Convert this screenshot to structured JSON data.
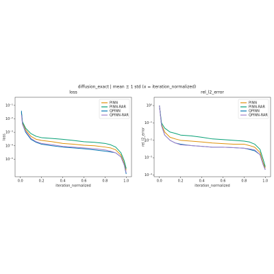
{
  "title": "diffusion_exact | mean ± 1 std (x = iteration_normalized)",
  "chart_data": [
    {
      "type": "line",
      "title": "loss",
      "x_label": "iteration_normalized",
      "y_label": "loss",
      "log_y": true,
      "legend": "upper right",
      "x": [
        0.01,
        0.02,
        0.05,
        0.1,
        0.15,
        0.2,
        0.3,
        0.4,
        0.5,
        0.6,
        0.7,
        0.8,
        0.85,
        0.9,
        0.95,
        0.98,
        1.0
      ],
      "xlim": [
        -0.05,
        1.05
      ],
      "xticks": [
        {
          "value": 0,
          "label": "0.0"
        },
        {
          "value": 0.2,
          "label": "0.2"
        },
        {
          "value": 0.4,
          "label": "0.4"
        },
        {
          "value": 0.6,
          "label": "0.6"
        },
        {
          "value": 0.8,
          "label": "0.8"
        },
        {
          "value": 1,
          "label": "1.0"
        }
      ],
      "ylim": [
        5e-07,
        0.4
      ],
      "yticks": [
        {
          "value": 1e-05,
          "label": "10⁻⁵"
        },
        {
          "value": 0.0001,
          "label": "10⁻⁴"
        },
        {
          "value": 0.001,
          "label": "10⁻³"
        },
        {
          "value": 0.01,
          "label": "10⁻²"
        },
        {
          "value": 0.1,
          "label": "10⁻¹"
        }
      ],
      "series": [
        {
          "name": "PINN",
          "color": "#de8f05",
          "values": [
            0.03,
            0.005,
            0.0015,
            0.0005,
            0.0003,
            0.00025,
            0.0002,
            0.00015,
            0.00013,
            0.00011,
            0.0001,
            8e-05,
            7e-05,
            5e-05,
            2e-05,
            5e-06,
            1.5e-06
          ]
        },
        {
          "name": "PINN-RAR",
          "color": "#029e73",
          "values": [
            0.03,
            0.006,
            0.002,
            0.0008,
            0.0005,
            0.0004,
            0.00035,
            0.0003,
            0.00025,
            0.0002,
            0.00018,
            0.00015,
            0.00012,
            8e-05,
            3e-05,
            8e-06,
            2e-06
          ]
        },
        {
          "name": "QPINN",
          "color": "#0173b2",
          "values": [
            0.04,
            0.004,
            0.001,
            0.0003,
            0.00018,
            0.00013,
            0.0001,
            8e-05,
            7e-05,
            6e-05,
            5e-05,
            4e-05,
            3.5e-05,
            3e-05,
            1.5e-05,
            4e-06,
            8e-07
          ]
        },
        {
          "name": "QPINN-RAR",
          "color": "#a27fc9",
          "values": [
            0.02,
            0.004,
            0.0012,
            0.00035,
            0.0002,
            0.00015,
            0.00012,
            9e-05,
            8e-05,
            7e-05,
            6e-05,
            5e-05,
            4e-05,
            3e-05,
            1.5e-05,
            4e-06,
            1e-06
          ]
        }
      ]
    },
    {
      "type": "line",
      "title": "rel_l2_error",
      "x_label": "iteration_normalized",
      "y_label": "rel_l2_error",
      "log_y": true,
      "legend": "upper right",
      "x": [
        0.0,
        0.02,
        0.05,
        0.1,
        0.15,
        0.2,
        0.3,
        0.4,
        0.5,
        0.6,
        0.7,
        0.8,
        0.85,
        0.9,
        0.95,
        0.98,
        1.0
      ],
      "xlim": [
        -0.05,
        1.05
      ],
      "xticks": [
        {
          "value": 0,
          "label": "0.0"
        },
        {
          "value": 0.2,
          "label": "0.2"
        },
        {
          "value": 0.4,
          "label": "0.4"
        },
        {
          "value": 0.6,
          "label": "0.6"
        },
        {
          "value": 0.8,
          "label": "0.8"
        },
        {
          "value": 1,
          "label": "1.0"
        }
      ],
      "ylim": [
        8e-05,
        3
      ],
      "yticks": [
        {
          "value": 0.0001,
          "label": "10⁻⁴"
        },
        {
          "value": 0.001,
          "label": "10⁻³"
        },
        {
          "value": 0.01,
          "label": "10⁻²"
        },
        {
          "value": 0.1,
          "label": "10⁻¹"
        },
        {
          "value": 1,
          "label": "10⁰"
        }
      ],
      "series": [
        {
          "name": "PINN",
          "color": "#de8f05",
          "values": [
            1,
            0.08,
            0.03,
            0.015,
            0.012,
            0.01,
            0.009,
            0.008,
            0.007,
            0.0065,
            0.006,
            0.006,
            0.005,
            0.004,
            0.002,
            0.0005,
            0.00025
          ]
        },
        {
          "name": "PINN-RAR",
          "color": "#029e73",
          "values": [
            1,
            0.1,
            0.05,
            0.03,
            0.025,
            0.02,
            0.018,
            0.015,
            0.012,
            0.011,
            0.01,
            0.009,
            0.008,
            0.006,
            0.003,
            0.0008,
            0.0003
          ]
        },
        {
          "name": "QPINN",
          "color": "#0173b2",
          "values": [
            1,
            0.07,
            0.02,
            0.01,
            0.007,
            0.006,
            0.005,
            0.0045,
            0.004,
            0.004,
            0.0038,
            0.0035,
            0.003,
            0.0025,
            0.0015,
            0.0004,
            0.0002
          ]
        },
        {
          "name": "QPINN-RAR",
          "color": "#a27fc9",
          "values": [
            1,
            0.07,
            0.02,
            0.01,
            0.007,
            0.0055,
            0.005,
            0.0045,
            0.004,
            0.004,
            0.0038,
            0.0035,
            0.0032,
            0.0028,
            0.0015,
            0.0004,
            0.0002
          ]
        }
      ]
    }
  ]
}
